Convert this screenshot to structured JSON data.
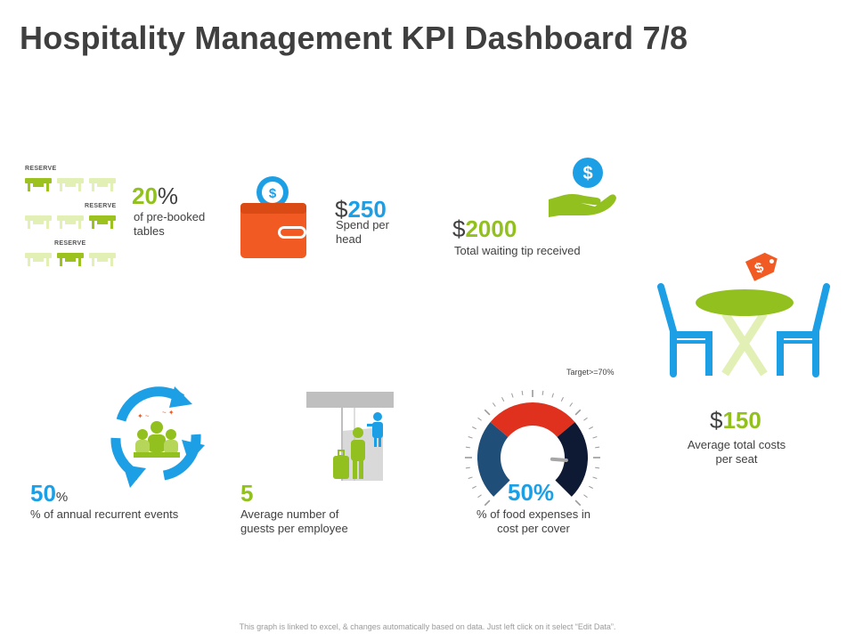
{
  "title": "Hospitality Management KPI Dashboard 7/8",
  "colors": {
    "green": "#92c01f",
    "light_green": "#e3f0b5",
    "blue": "#1d9fe6",
    "orange": "#f15a22",
    "red": "#e0301e",
    "navy": "#1f4e79",
    "dark_navy": "#0e1a33",
    "gray": "#bfbfbf",
    "text": "#404040"
  },
  "kpis": {
    "prebooked": {
      "value": "20",
      "unit": "%",
      "label": "of pre-booked tables",
      "reserve_label": "RESERVE",
      "reserve_label_2": "RESERVE",
      "reserve_label_3": "RESERVE",
      "icon": "reserved-tables-icon"
    },
    "spend": {
      "currency": "$",
      "value": "250",
      "label": "Spend per head",
      "icon": "wallet-icon"
    },
    "tips": {
      "currency": "$",
      "value": "2000",
      "label": "Total waiting tip received",
      "icon": "hand-dollar-icon"
    },
    "seat_cost": {
      "currency": "$",
      "value": "150",
      "label": "Average total costs per seat",
      "icon": "table-chairs-icon"
    },
    "events": {
      "value": "50",
      "unit": "%",
      "label": "% of annual recurrent events",
      "icon": "recurring-event-icon"
    },
    "guests": {
      "value": "5",
      "label": "Average number of guests per employee",
      "icon": "hotel-guest-icon"
    },
    "food": {
      "value": "50%",
      "label": "% of food expenses in cost per cover",
      "target": "Target>=70%",
      "gauge_level": 0.5,
      "icon": "gauge-icon"
    }
  },
  "footer": "This graph is linked to excel, & changes automatically based on data. Just left click on it select “Edit Data”."
}
